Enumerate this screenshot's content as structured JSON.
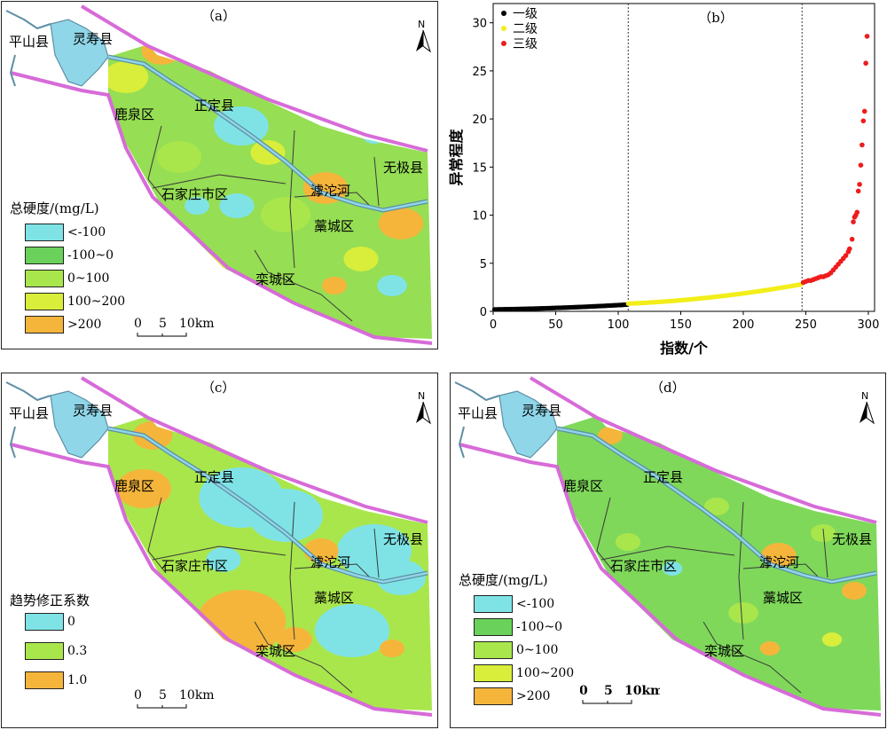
{
  "panels": {
    "a": {
      "label": "（a）",
      "places": [
        "平山县",
        "灵寿县",
        "鹿泉区",
        "正定县",
        "石家庄市区",
        "滹沱河",
        "藁城区",
        "无极县",
        "栾城区"
      ],
      "legend_title": "总硬度/(mg/L)",
      "legend": [
        {
          "label": "<-100",
          "color": "#7fe3e6"
        },
        {
          "label": "-100~0",
          "color": "#6ad25a"
        },
        {
          "label": "0~100",
          "color": "#a9e64c"
        },
        {
          "label": "100~200",
          "color": "#d8ee3a"
        },
        {
          "label": ">200",
          "color": "#f5b53b"
        }
      ],
      "scale": [
        "0",
        "5",
        "10km"
      ],
      "north": "N"
    },
    "c": {
      "label": "（c）",
      "places": [
        "平山县",
        "灵寿县",
        "鹿泉区",
        "正定县",
        "石家庄市区",
        "滹沱河",
        "藁城区",
        "无极县",
        "栾城区"
      ],
      "legend_title": "趋势修正系数",
      "legend": [
        {
          "label": "0",
          "color": "#7fe3e6"
        },
        {
          "label": "0.3",
          "color": "#a9e64c"
        },
        {
          "label": "1.0",
          "color": "#f5b53b"
        }
      ],
      "scale": [
        "0",
        "5",
        "10km"
      ],
      "north": "N"
    },
    "d": {
      "label": "（d）",
      "places": [
        "平山县",
        "灵寿县",
        "鹿泉区",
        "正定县",
        "石家庄市区",
        "滹沱河",
        "藁城区",
        "无极县",
        "栾城区"
      ],
      "legend_title": "总硬度/(mg/L)",
      "legend": [
        {
          "label": "<-100",
          "color": "#7fe3e6"
        },
        {
          "label": "-100~0",
          "color": "#6ad25a"
        },
        {
          "label": "0~100",
          "color": "#a9e64c"
        },
        {
          "label": "100~200",
          "color": "#d8ee3a"
        },
        {
          "label": ">200",
          "color": "#f5b53b"
        }
      ],
      "scale": [
        "0",
        "5",
        "10km"
      ],
      "north": "N"
    }
  },
  "colors": {
    "boundary": "#d76bd8",
    "river": "#5e8fa4",
    "river_fill": "#8fd6e8",
    "district": "#3a3a3a"
  },
  "chart_data": {
    "type": "scatter",
    "title": "（b）",
    "xlabel": "指数/个",
    "ylabel": "异常程度",
    "xlim": [
      0,
      305
    ],
    "ylim": [
      0,
      32
    ],
    "xticks": [
      0,
      50,
      100,
      150,
      200,
      250,
      300
    ],
    "yticks": [
      0,
      5,
      10,
      15,
      20,
      25,
      30
    ],
    "vlines": [
      108,
      247
    ],
    "legend_position": "top-left",
    "series": [
      {
        "name": "一级",
        "color": "#000000",
        "segments": [
          {
            "x0": 1,
            "x1": 107,
            "y0": 0.2,
            "y1": 0.7
          }
        ]
      },
      {
        "name": "二级",
        "color": "#f2ee1a",
        "segments": [
          {
            "x0": 108,
            "x1": 246,
            "y0": 0.8,
            "y1": 2.8
          }
        ]
      },
      {
        "name": "三级",
        "color": "#ee1c1c",
        "points": [
          [
            248,
            3.0
          ],
          [
            250,
            3.1
          ],
          [
            252,
            3.2
          ],
          [
            254,
            3.2
          ],
          [
            256,
            3.3
          ],
          [
            258,
            3.4
          ],
          [
            260,
            3.5
          ],
          [
            262,
            3.6
          ],
          [
            264,
            3.6
          ],
          [
            266,
            3.7
          ],
          [
            268,
            3.8
          ],
          [
            270,
            4.0
          ],
          [
            272,
            4.3
          ],
          [
            274,
            4.6
          ],
          [
            276,
            4.9
          ],
          [
            278,
            5.2
          ],
          [
            280,
            5.5
          ],
          [
            282,
            5.8
          ],
          [
            284,
            6.2
          ],
          [
            285,
            6.5
          ],
          [
            287,
            7.5
          ],
          [
            288,
            9.3
          ],
          [
            289,
            9.8
          ],
          [
            290,
            10.0
          ],
          [
            291,
            10.3
          ],
          [
            292,
            12.5
          ],
          [
            293,
            13.2
          ],
          [
            294,
            15.2
          ],
          [
            295,
            17.3
          ],
          [
            296,
            19.8
          ],
          [
            297,
            20.8
          ],
          [
            298,
            25.8
          ],
          [
            299,
            28.6
          ]
        ]
      }
    ]
  }
}
